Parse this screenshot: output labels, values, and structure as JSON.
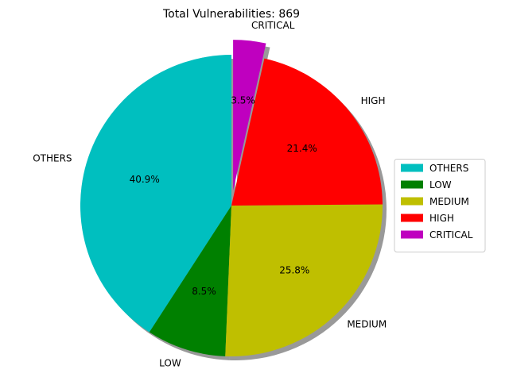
{
  "chart_data": {
    "type": "pie",
    "title": "Total Vulnerabilities: 869",
    "categories": [
      "OTHERS",
      "LOW",
      "MEDIUM",
      "HIGH",
      "CRITICAL"
    ],
    "values": [
      40.9,
      8.5,
      25.8,
      21.4,
      3.5
    ],
    "value_labels": [
      "40.9%",
      "8.5%",
      "25.8%",
      "21.4%",
      "3.5%"
    ],
    "colors": [
      "#00bfbf",
      "#008000",
      "#bfbf00",
      "#ff0000",
      "#bf00bf"
    ],
    "explode": [
      0,
      0,
      0,
      0,
      0.1
    ],
    "start_angle": 90,
    "shadow": true,
    "legend": "right"
  }
}
